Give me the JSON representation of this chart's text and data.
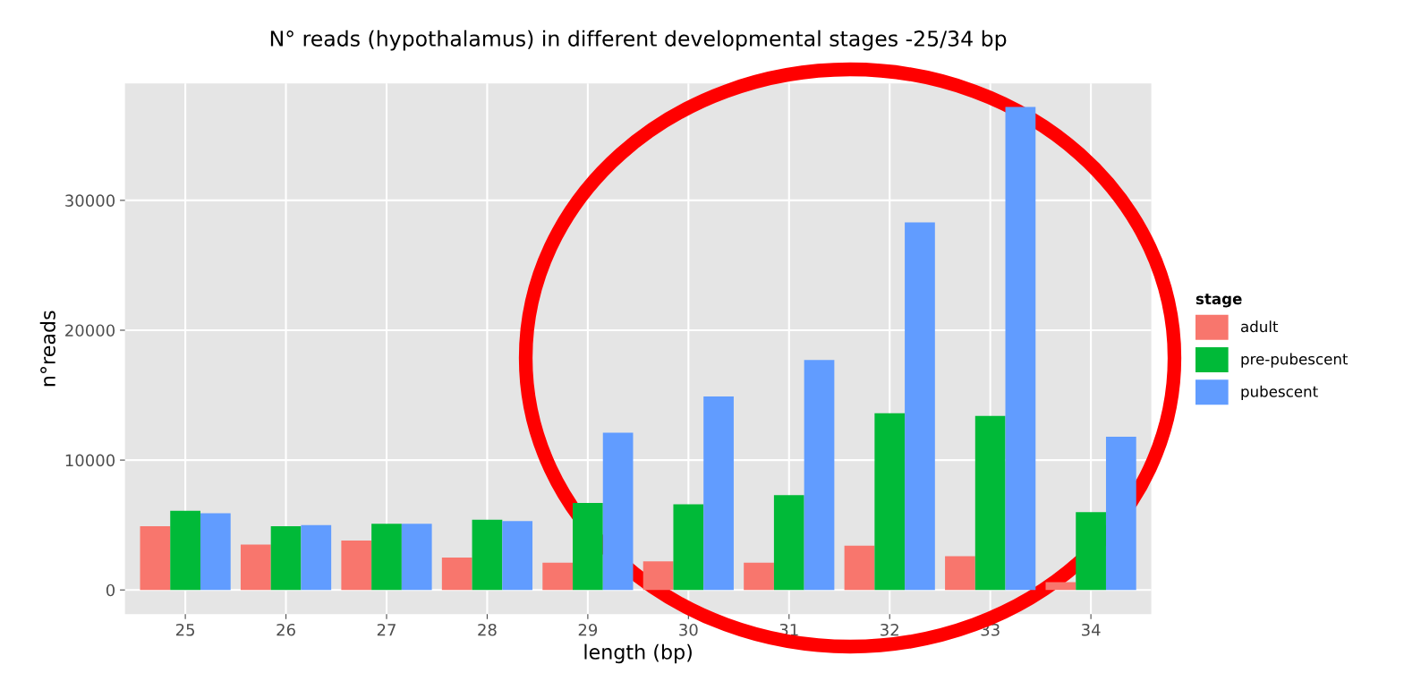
{
  "chart_data": {
    "type": "bar",
    "title": "N° reads (hypothalamus) in different developmental stages -25/34 bp",
    "xlabel": "length (bp)",
    "ylabel": "n°reads",
    "legend_title": "stage",
    "categories": [
      "25",
      "26",
      "27",
      "28",
      "29",
      "30",
      "31",
      "32",
      "33",
      "34"
    ],
    "series": [
      {
        "name": "adult",
        "color": "#f8766d",
        "values": [
          4900,
          3500,
          3800,
          2500,
          2100,
          2200,
          2100,
          3400,
          2600,
          600
        ]
      },
      {
        "name": "pre-pubescent",
        "color": "#00ba38",
        "values": [
          6100,
          4900,
          5100,
          5400,
          6700,
          6600,
          7300,
          13600,
          13400,
          6000
        ]
      },
      {
        "name": "pubescent",
        "color": "#619cff",
        "values": [
          5900,
          5000,
          5100,
          5300,
          12100,
          14900,
          17700,
          28300,
          37200,
          11800
        ]
      }
    ],
    "ylim": [
      -1860,
      39000
    ],
    "yticks": [
      0,
      10000,
      20000,
      30000
    ],
    "grid": true,
    "legend": "right"
  }
}
